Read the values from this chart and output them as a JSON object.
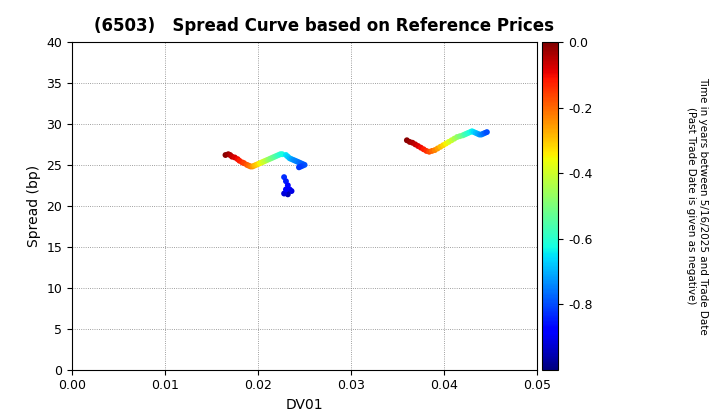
{
  "title": "(6503)   Spread Curve based on Reference Prices",
  "xlabel": "DV01",
  "ylabel": "Spread (bp)",
  "xlim": [
    0.0,
    0.05
  ],
  "ylim": [
    0,
    40
  ],
  "xticks": [
    0.0,
    0.01,
    0.02,
    0.03,
    0.04,
    0.05
  ],
  "yticks": [
    0,
    5,
    10,
    15,
    20,
    25,
    30,
    35,
    40
  ],
  "colorbar_label": "Time in years between 5/16/2025 and Trade Date\n(Past Trade Date is given as negative)",
  "colorbar_vmin": -1.0,
  "colorbar_vmax": 0.0,
  "colorbar_ticks": [
    0.0,
    -0.2,
    -0.4,
    -0.6,
    -0.8
  ],
  "cluster1": {
    "dv01": [
      0.0165,
      0.0168,
      0.017,
      0.0172,
      0.0175,
      0.0178,
      0.018,
      0.0183,
      0.0185,
      0.0188,
      0.019,
      0.0192,
      0.0194,
      0.0196,
      0.0198,
      0.02,
      0.0202,
      0.0204,
      0.0206,
      0.0208,
      0.021,
      0.0212,
      0.0214,
      0.0216,
      0.0218,
      0.022,
      0.0222,
      0.0224,
      0.0226,
      0.023,
      0.0232,
      0.0234,
      0.0236,
      0.0238,
      0.024,
      0.0242,
      0.0244,
      0.0246,
      0.0248,
      0.025,
      0.0248,
      0.0246,
      0.0244
    ],
    "spread": [
      26.2,
      26.3,
      26.2,
      26.0,
      25.9,
      25.7,
      25.5,
      25.3,
      25.2,
      25.0,
      24.9,
      24.8,
      24.8,
      24.9,
      25.0,
      25.1,
      25.2,
      25.3,
      25.4,
      25.5,
      25.6,
      25.7,
      25.8,
      25.9,
      26.0,
      26.1,
      26.2,
      26.3,
      26.3,
      26.2,
      26.0,
      25.8,
      25.7,
      25.6,
      25.5,
      25.4,
      25.3,
      25.2,
      25.1,
      25.0,
      24.9,
      24.8,
      24.7
    ],
    "time": [
      -0.01,
      -0.02,
      -0.04,
      -0.06,
      -0.08,
      -0.1,
      -0.12,
      -0.14,
      -0.16,
      -0.18,
      -0.2,
      -0.22,
      -0.25,
      -0.28,
      -0.3,
      -0.32,
      -0.35,
      -0.38,
      -0.4,
      -0.42,
      -0.45,
      -0.48,
      -0.5,
      -0.52,
      -0.54,
      -0.56,
      -0.58,
      -0.6,
      -0.62,
      -0.65,
      -0.67,
      -0.69,
      -0.71,
      -0.73,
      -0.74,
      -0.75,
      -0.76,
      -0.77,
      -0.78,
      -0.79,
      -0.8,
      -0.81,
      -0.82
    ]
  },
  "cluster2_blue": {
    "dv01": [
      0.0228,
      0.023,
      0.0232,
      0.0234,
      0.0236,
      0.023,
      0.0232,
      0.0228,
      0.023
    ],
    "spread": [
      23.5,
      23.0,
      22.5,
      22.0,
      21.8,
      21.6,
      21.4,
      21.5,
      22.0
    ],
    "time": [
      -0.83,
      -0.85,
      -0.87,
      -0.89,
      -0.91,
      -0.93,
      -0.95,
      -0.92,
      -0.88
    ]
  },
  "cluster3": {
    "dv01": [
      0.036,
      0.0363,
      0.0366,
      0.0369,
      0.0372,
      0.0375,
      0.0378,
      0.0381,
      0.0384,
      0.0387,
      0.039,
      0.0393,
      0.0396,
      0.0399,
      0.0402,
      0.0405,
      0.0408,
      0.0411,
      0.0414,
      0.0417,
      0.042,
      0.0422,
      0.0424,
      0.0426,
      0.0428,
      0.043,
      0.0432,
      0.0434,
      0.0436,
      0.0438,
      0.044,
      0.0442,
      0.0444,
      0.0446
    ],
    "spread": [
      28.0,
      27.8,
      27.7,
      27.5,
      27.3,
      27.1,
      26.9,
      26.7,
      26.6,
      26.7,
      26.8,
      27.0,
      27.2,
      27.4,
      27.6,
      27.8,
      28.0,
      28.2,
      28.4,
      28.5,
      28.6,
      28.7,
      28.8,
      28.9,
      29.0,
      29.1,
      29.0,
      28.9,
      28.8,
      28.7,
      28.7,
      28.8,
      28.9,
      29.0
    ],
    "time": [
      -0.01,
      -0.02,
      -0.04,
      -0.06,
      -0.08,
      -0.1,
      -0.12,
      -0.14,
      -0.17,
      -0.2,
      -0.23,
      -0.26,
      -0.29,
      -0.32,
      -0.35,
      -0.38,
      -0.41,
      -0.44,
      -0.47,
      -0.5,
      -0.53,
      -0.56,
      -0.58,
      -0.6,
      -0.62,
      -0.64,
      -0.66,
      -0.68,
      -0.7,
      -0.72,
      -0.74,
      -0.76,
      -0.78,
      -0.8
    ]
  },
  "background_color": "#ffffff",
  "title_fontsize": 12,
  "axis_fontsize": 10,
  "tick_fontsize": 9,
  "marker_size": 18
}
